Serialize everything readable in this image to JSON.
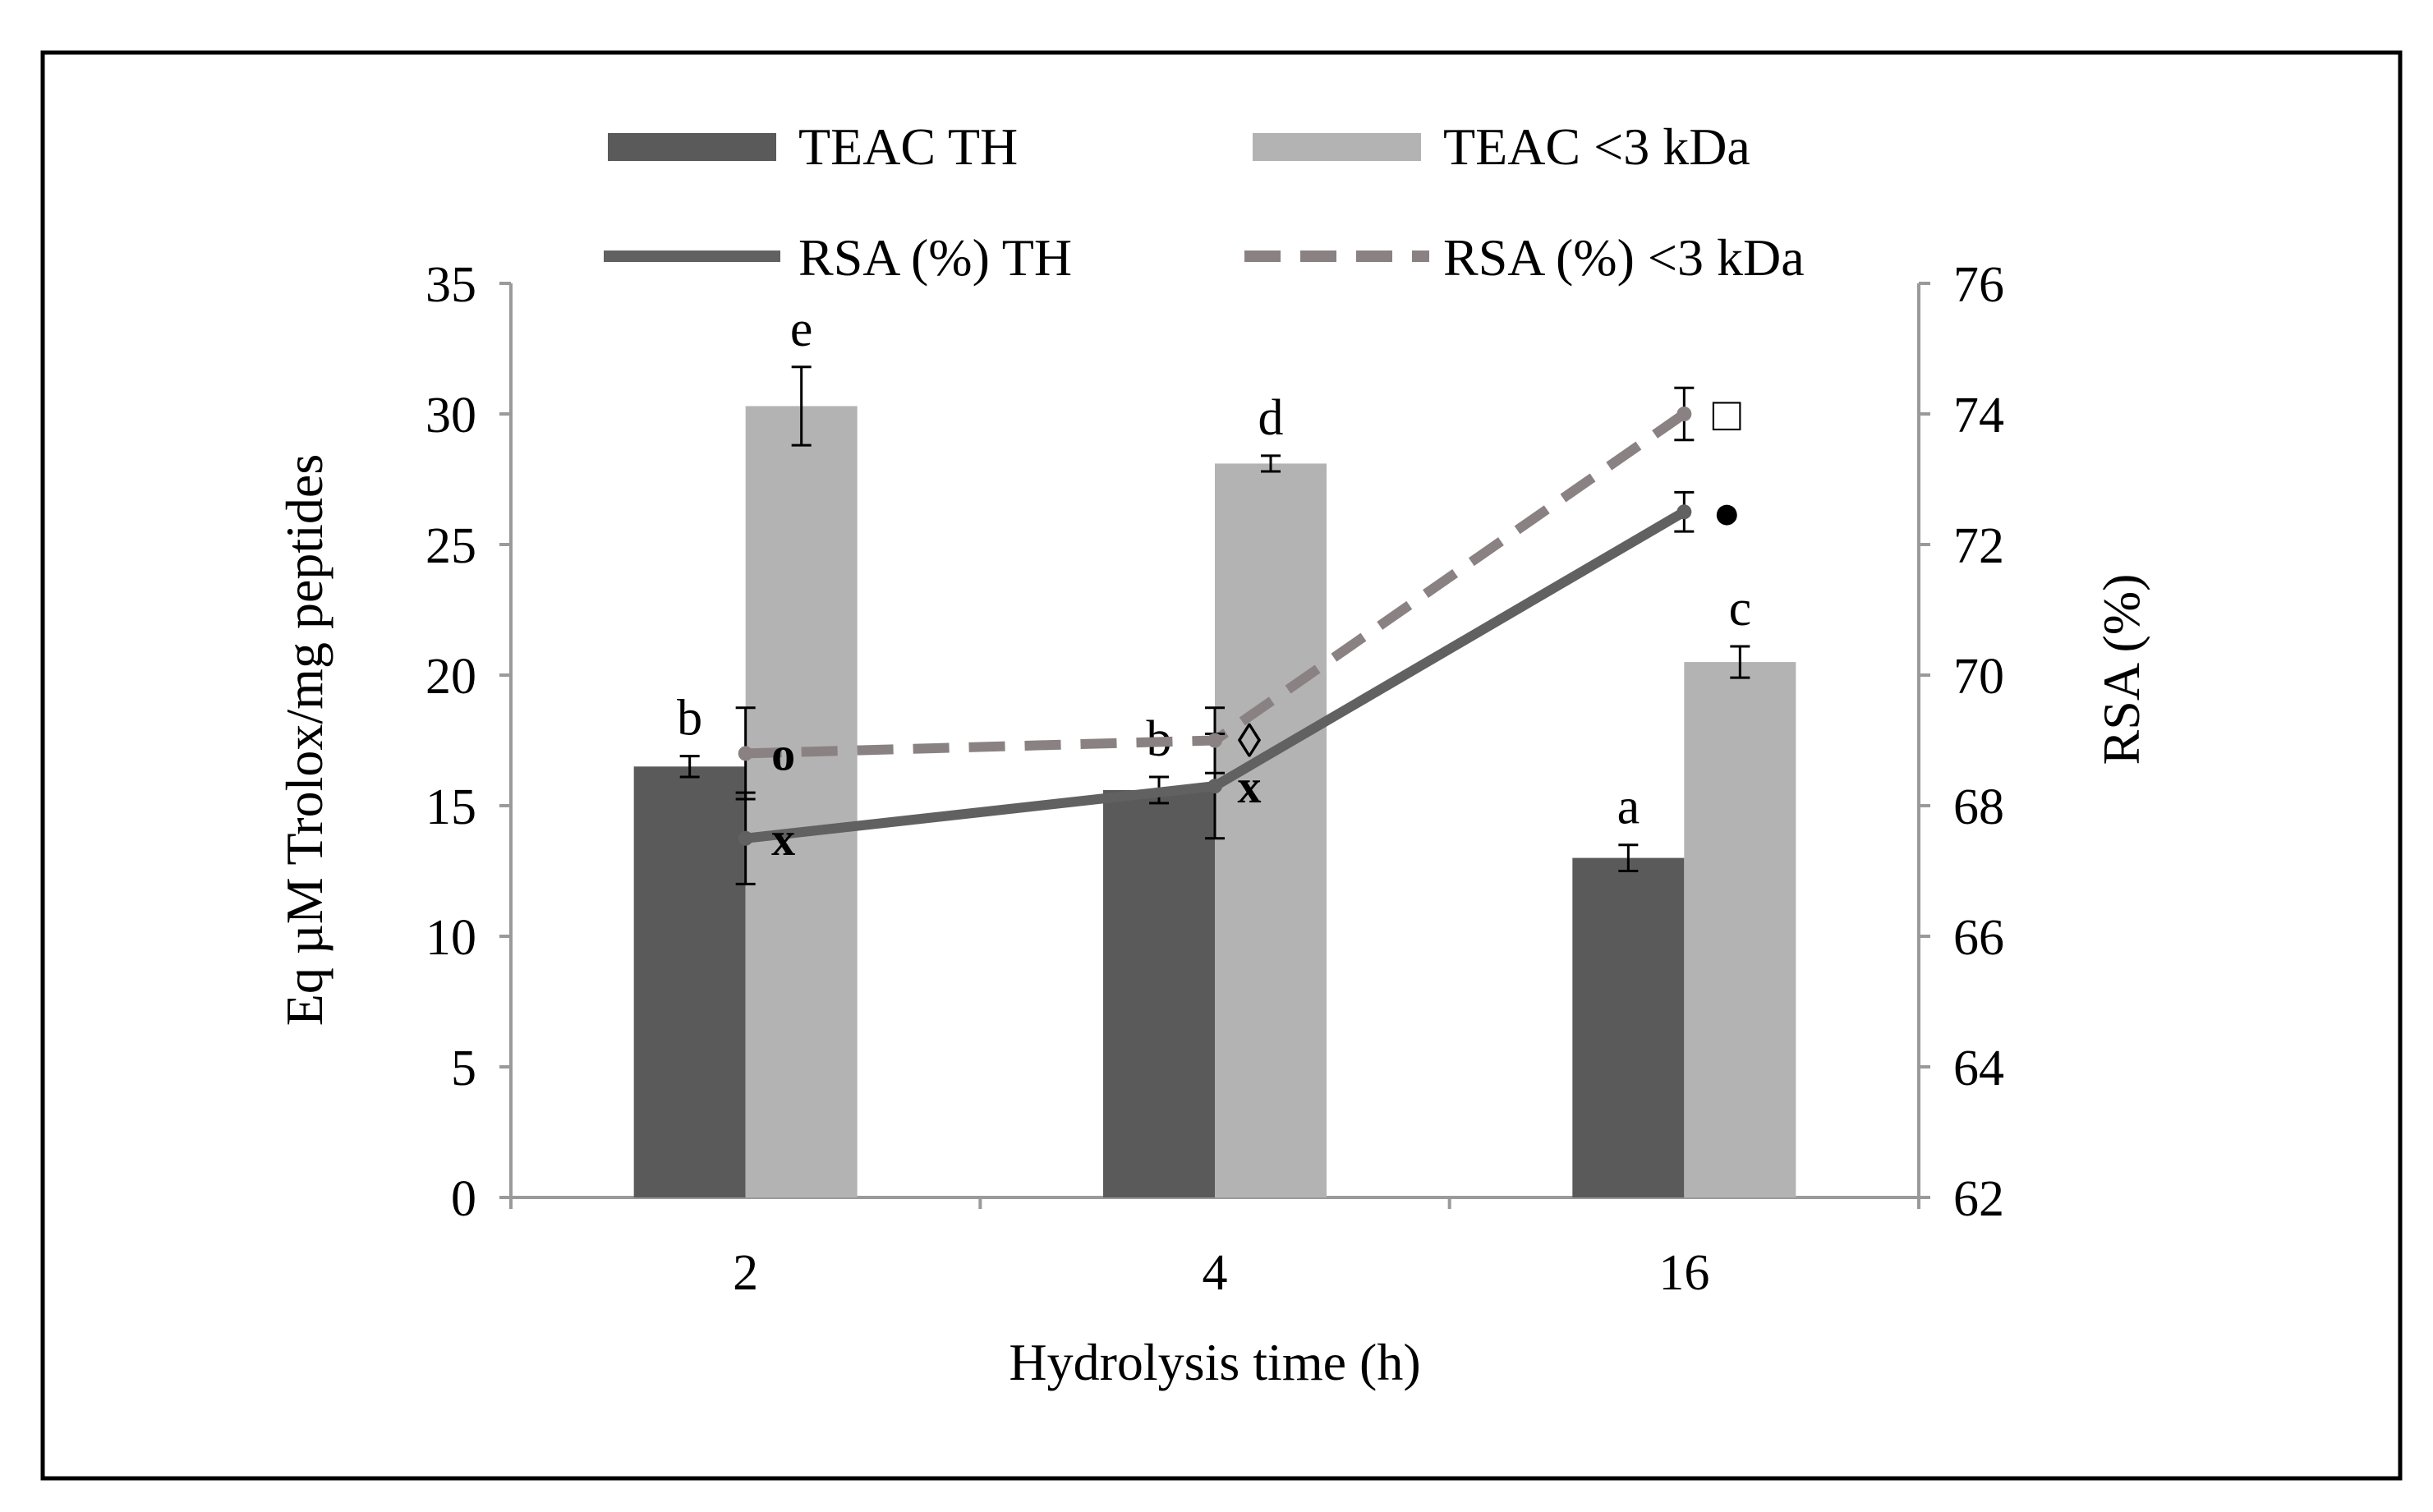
{
  "chart_data": {
    "type": "bar",
    "categories": [
      "2",
      "4",
      "16"
    ],
    "xlabel": "Hydrolysis time (h)",
    "ylabel": "Eq µM Trolox/mg peptides",
    "y2label": "RSA (%)",
    "ylim": [
      0,
      35
    ],
    "y2lim": [
      62,
      76
    ],
    "yticks": [
      "0",
      "5",
      "10",
      "15",
      "20",
      "25",
      "30",
      "35"
    ],
    "y2ticks": [
      "62",
      "64",
      "66",
      "68",
      "70",
      "72",
      "74",
      "76"
    ],
    "grid": false,
    "legend_position": "top",
    "bar_series": [
      {
        "name": "TEAC TH",
        "color": "#5a5a5a",
        "values": [
          16.5,
          15.6,
          13.0
        ],
        "errors": [
          0.4,
          0.5,
          0.5
        ],
        "letters": [
          "b",
          "b",
          "a"
        ]
      },
      {
        "name": "TEAC <3 kDa",
        "color": "#b3b3b3",
        "values": [
          30.3,
          28.1,
          20.5
        ],
        "errors": [
          1.5,
          0.3,
          0.6
        ],
        "letters": [
          "e",
          "d",
          "c"
        ]
      }
    ],
    "line_series": [
      {
        "name": "RSA (%) TH",
        "color": "#616161",
        "style": "solid",
        "values": [
          67.5,
          68.3,
          72.5
        ],
        "errors": [
          0.7,
          0.8,
          0.3
        ],
        "markers": [
          "x",
          "x",
          "●"
        ]
      },
      {
        "name": "RSA (%) <3 kDa",
        "color": "#8a8282",
        "style": "dashed",
        "values": [
          68.8,
          69.0,
          74.0
        ],
        "errors": [
          0.7,
          0.5,
          0.4
        ],
        "markers": [
          "o",
          "◊",
          "□"
        ]
      }
    ]
  }
}
